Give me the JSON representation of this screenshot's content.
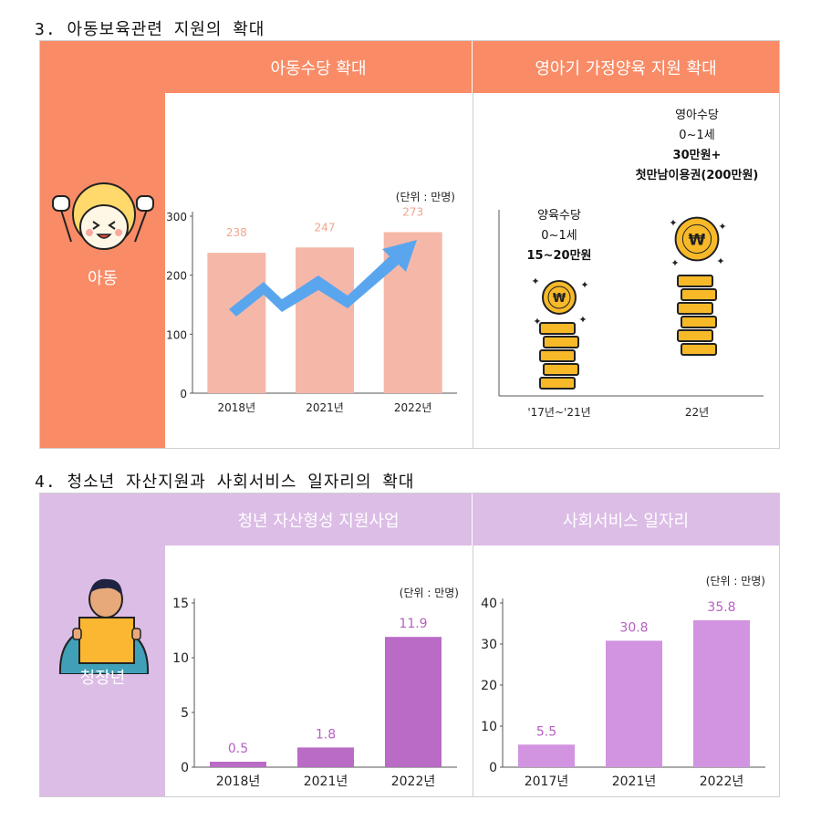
{
  "colors": {
    "orange_header": "#f98b66",
    "orange_bar": "#f5b8a8",
    "orange_label": "#f0a48e",
    "arrow_blue": "#5aa6ee",
    "coin_gold": "#f7b928",
    "purple_header": "#dcbde6",
    "purple_bar_dark": "#b96bc6",
    "purple_bar_light": "#d293e0",
    "purple_label": "#b660c2"
  },
  "section3": {
    "title": "3. 아동보육관련 지원의 확대",
    "side_label": "아동",
    "panel1_title": "아동수당 확대",
    "panel2_title": "영아기 가정양육 지원 확대"
  },
  "section4": {
    "title": "4. 청소년 자산지원과 사회서비스 일자리의 확대",
    "side_label": "청장년",
    "panel1_title": "청년 자산형성 지원사업",
    "panel2_title": "사회서비스 일자리"
  },
  "chart_data": [
    {
      "type": "bar",
      "categories": [
        "2018년",
        "2021년",
        "2022년"
      ],
      "values": [
        238,
        247,
        273
      ],
      "unit_note": "(단위 : 만명)",
      "y_ticks": [
        "300",
        "200",
        "100",
        "0"
      ],
      "ylim": [
        0,
        300
      ],
      "annotation": "upward arrow"
    },
    {
      "type": "bar",
      "categories": [
        "'17년~'21년",
        "22년"
      ],
      "values_text": [
        [
          "양육수당",
          "0~1세",
          "15~20만원"
        ],
        [
          "영아수당",
          "0~1세",
          "30만원+",
          "첫만남이용권(200만원)"
        ]
      ],
      "coin_stack_heights": [
        5,
        6
      ]
    },
    {
      "type": "bar",
      "categories": [
        "2018년",
        "2021년",
        "2022년"
      ],
      "values": [
        0.5,
        1.8,
        11.9
      ],
      "value_labels": [
        "0.5",
        "1.8",
        "11.9"
      ],
      "unit_note": "(단위 : 만명)",
      "y_ticks": [
        "15",
        "10",
        "5",
        "0"
      ],
      "ylim": [
        0,
        15
      ]
    },
    {
      "type": "bar",
      "categories": [
        "2017년",
        "2021년",
        "2022년"
      ],
      "values": [
        5.5,
        30.8,
        35.8
      ],
      "value_labels": [
        "5.5",
        "30.8",
        "35.8"
      ],
      "unit_note": "(단위 : 만명)",
      "y_ticks": [
        "40",
        "30",
        "20",
        "10",
        "0"
      ],
      "ylim": [
        0,
        40
      ]
    }
  ]
}
